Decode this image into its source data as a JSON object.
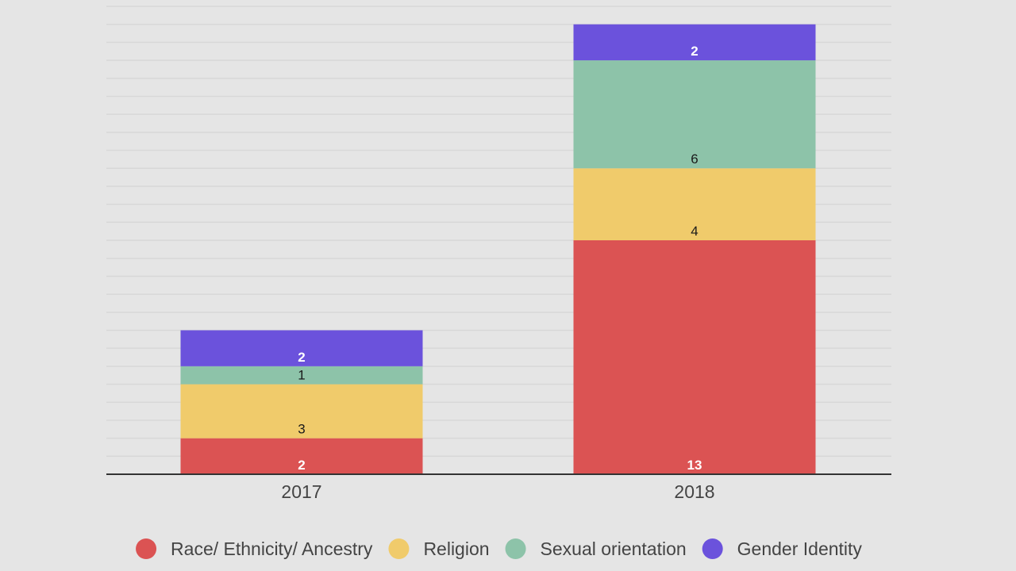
{
  "chart_data": {
    "type": "bar",
    "stacked": true,
    "title": "",
    "xlabel": "",
    "ylabel": "",
    "categories": [
      "2017",
      "2018"
    ],
    "series": [
      {
        "name": "Race/ Ethnicity/ Ancestry",
        "values": [
          2,
          13
        ],
        "color": "#db5353",
        "label_color": "#ffffff"
      },
      {
        "name": "Religion",
        "values": [
          3,
          4
        ],
        "color": "#f0cb6b",
        "label_color": "#1a1a1a"
      },
      {
        "name": "Sexual orientation",
        "values": [
          1,
          6
        ],
        "color": "#8dc3a9",
        "label_color": "#1a1a1a"
      },
      {
        "name": "Gender Identity",
        "values": [
          2,
          2
        ],
        "color": "#6b52dc",
        "label_color": "#ffffff"
      }
    ],
    "ylim": [
      0,
      26
    ],
    "grid": true,
    "legend_position": "bottom"
  },
  "colors": {
    "background": "#e5e5e5",
    "gridline": "#d8d8d8",
    "axis": "#333333"
  }
}
